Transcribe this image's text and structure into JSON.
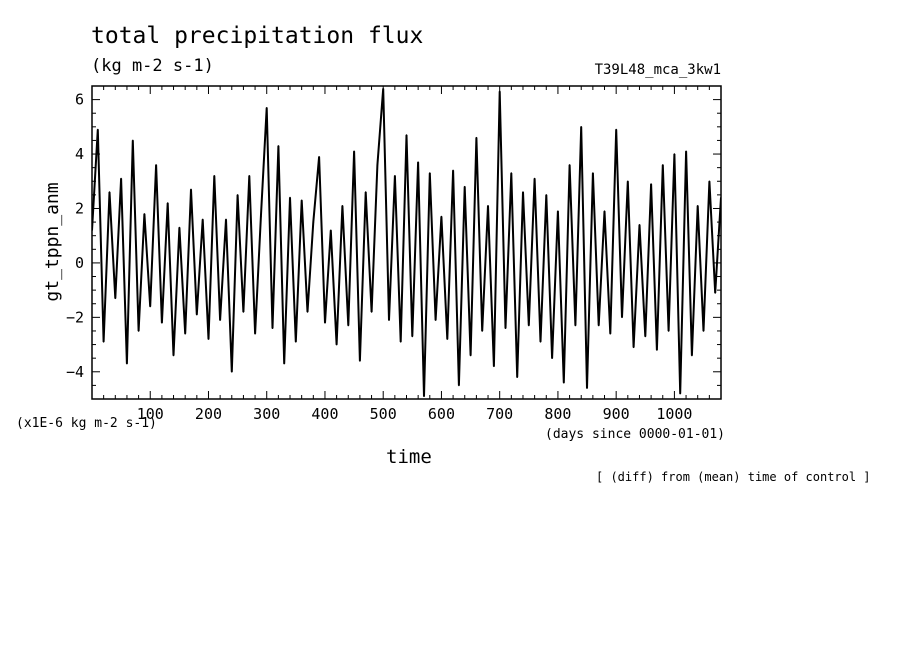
{
  "title": "total precipitation flux",
  "units": "(kg m-2 s-1)",
  "experiment": "T39L48_mca_3kw1",
  "note": "[ (diff) from (mean) time of control ]",
  "chart_data": {
    "type": "line",
    "title": "total precipitation flux",
    "ylabel": "gt_tppn_anm",
    "xlabel": "time",
    "x_unit_label": "(days since 0000-01-01)",
    "y_unit_label": "(x1E-6 kg m-2 s-1)",
    "xlim": [
      0,
      1080
    ],
    "ylim": [
      -5,
      6.5
    ],
    "x_ticks": [
      100,
      200,
      300,
      400,
      500,
      600,
      700,
      800,
      900,
      1000
    ],
    "y_ticks": [
      -4,
      -2,
      0,
      2,
      4,
      6
    ],
    "grid": false,
    "line_color": "#000000",
    "series": [
      {
        "x": [
          0,
          10,
          20,
          30,
          40,
          50,
          60,
          70,
          80,
          90,
          100,
          110,
          120,
          130,
          140,
          150,
          160,
          170,
          180,
          190,
          200,
          210,
          220,
          230,
          240,
          250,
          260,
          270,
          280,
          290,
          300,
          310,
          320,
          330,
          340,
          350,
          360,
          370,
          380,
          390,
          400,
          410,
          420,
          430,
          440,
          450,
          460,
          470,
          480,
          490,
          500,
          510,
          520,
          530,
          540,
          550,
          560,
          570,
          580,
          590,
          600,
          610,
          620,
          630,
          640,
          650,
          660,
          670,
          680,
          690,
          700,
          710,
          720,
          730,
          740,
          750,
          760,
          770,
          780,
          790,
          800,
          810,
          820,
          830,
          840,
          850,
          860,
          870,
          880,
          890,
          900,
          910,
          920,
          930,
          940,
          950,
          960,
          970,
          980,
          990,
          1000,
          1010,
          1020,
          1030,
          1040,
          1050,
          1060,
          1070,
          1080
        ],
        "values": [
          1.2,
          4.9,
          -2.9,
          2.6,
          -1.3,
          3.1,
          -3.7,
          4.5,
          -2.5,
          1.8,
          -1.6,
          3.6,
          -2.2,
          2.2,
          -3.4,
          1.3,
          -2.6,
          2.7,
          -1.9,
          1.6,
          -2.8,
          3.2,
          -2.1,
          1.6,
          -4.0,
          2.5,
          -1.8,
          3.2,
          -2.6,
          1.7,
          5.7,
          -2.4,
          4.3,
          -3.7,
          2.4,
          -2.9,
          2.3,
          -1.8,
          1.5,
          3.9,
          -2.2,
          1.2,
          -3.0,
          2.1,
          -2.3,
          4.1,
          -3.6,
          2.6,
          -1.8,
          3.6,
          6.4,
          -2.1,
          3.2,
          -2.9,
          4.7,
          -2.7,
          3.7,
          -4.9,
          3.3,
          -2.1,
          1.7,
          -2.8,
          3.4,
          -4.5,
          2.8,
          -3.4,
          4.6,
          -2.5,
          2.1,
          -3.8,
          6.3,
          -2.4,
          3.3,
          -4.2,
          2.6,
          -2.3,
          3.1,
          -2.9,
          2.5,
          -3.5,
          1.9,
          -4.4,
          3.6,
          -2.3,
          5.0,
          -4.6,
          3.3,
          -2.3,
          1.9,
          -2.6,
          4.9,
          -2.0,
          3.0,
          -3.1,
          1.4,
          -2.7,
          2.9,
          -3.2,
          3.6,
          -2.5,
          4.0,
          -4.8,
          4.1,
          -3.4,
          2.1,
          -2.5,
          3.0,
          -1.1,
          2.4
        ]
      }
    ]
  }
}
